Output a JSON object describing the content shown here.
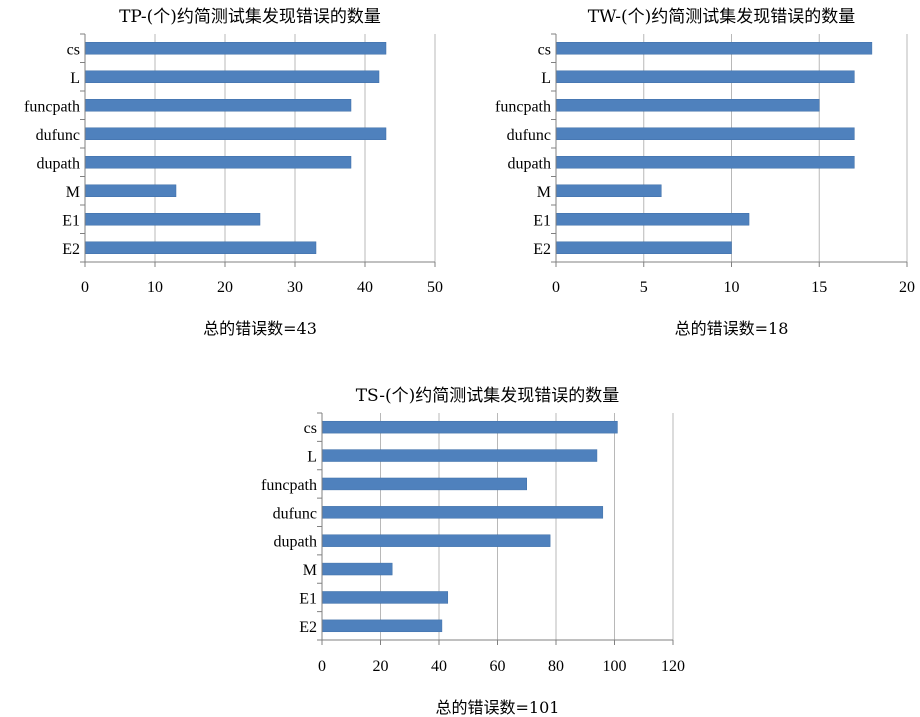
{
  "chart_data": [
    {
      "type": "bar",
      "orientation": "horizontal",
      "title": "TP-(个)约简测试集发现错误的数量",
      "xlabel": "总的错误数=43",
      "categories": [
        "cs",
        "L",
        "funcpath",
        "dufunc",
        "dupath",
        "M",
        "E1",
        "E2"
      ],
      "values": [
        43,
        42,
        38,
        43,
        38,
        13,
        25,
        33
      ],
      "xlim": [
        0,
        50
      ],
      "xticks": [
        0,
        10,
        20,
        30,
        40,
        50
      ],
      "grid": true,
      "legend": "none",
      "bar_color": "#4f81bd"
    },
    {
      "type": "bar",
      "orientation": "horizontal",
      "title": "TW-(个)约简测试集发现错误的数量",
      "xlabel": "总的错误数=18",
      "categories": [
        "cs",
        "L",
        "funcpath",
        "dufunc",
        "dupath",
        "M",
        "E1",
        "E2"
      ],
      "values": [
        18,
        17,
        15,
        17,
        17,
        6,
        11,
        10
      ],
      "xlim": [
        0,
        20
      ],
      "xticks": [
        0,
        5,
        10,
        15,
        20
      ],
      "grid": true,
      "legend": "none",
      "bar_color": "#4f81bd"
    },
    {
      "type": "bar",
      "orientation": "horizontal",
      "title": "TS-(个)约简测试集发现错误的数量",
      "xlabel": "总的错误数=101",
      "categories": [
        "cs",
        "L",
        "funcpath",
        "dufunc",
        "dupath",
        "M",
        "E1",
        "E2"
      ],
      "values": [
        101,
        94,
        70,
        96,
        78,
        24,
        43,
        41
      ],
      "xlim": [
        0,
        120
      ],
      "xticks": [
        0,
        20,
        40,
        60,
        80,
        100,
        120
      ],
      "grid": true,
      "legend": "none",
      "bar_color": "#4f81bd"
    }
  ]
}
